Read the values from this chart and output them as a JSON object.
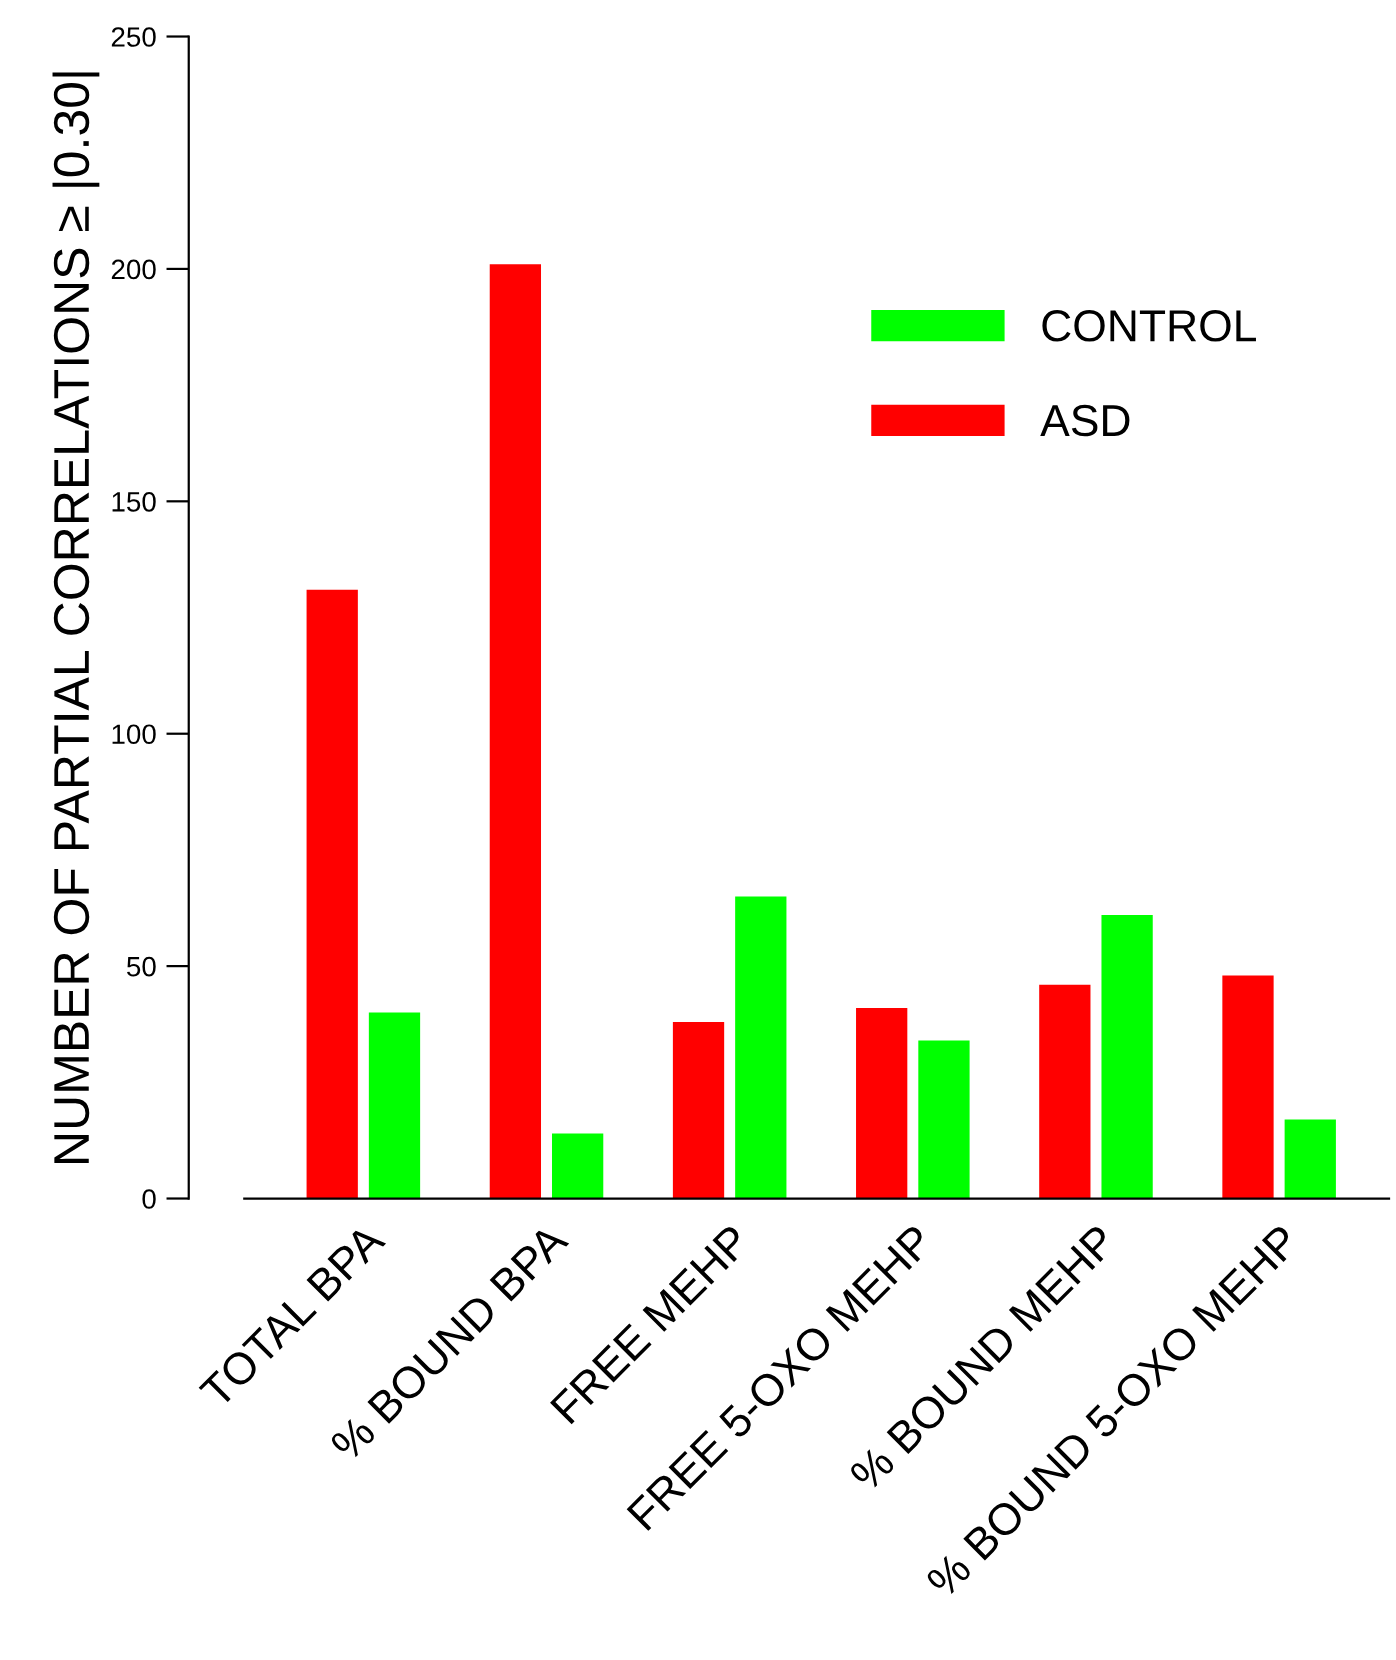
{
  "chart_data": {
    "type": "bar",
    "ylabel": "NUMBER OF PARTIAL CORRELATIONS ≥ |0.30|",
    "categories": [
      "TOTAL BPA",
      "% BOUND BPA",
      "FREE MEHP",
      "FREE 5-OXO MEHP",
      "% BOUND MEHP",
      "% BOUND 5-OXO MEHP"
    ],
    "series": [
      {
        "name": "ASD",
        "color": "#ff0000",
        "values": [
          131,
          201,
          38,
          41,
          46,
          48
        ]
      },
      {
        "name": "CONTROL",
        "color": "#00ff00",
        "values": [
          40,
          14,
          65,
          34,
          61,
          17
        ]
      }
    ],
    "ylim": [
      0,
      250
    ],
    "yticks": [
      0,
      50,
      100,
      150,
      200,
      250
    ],
    "grid": false,
    "legend": "top right"
  }
}
